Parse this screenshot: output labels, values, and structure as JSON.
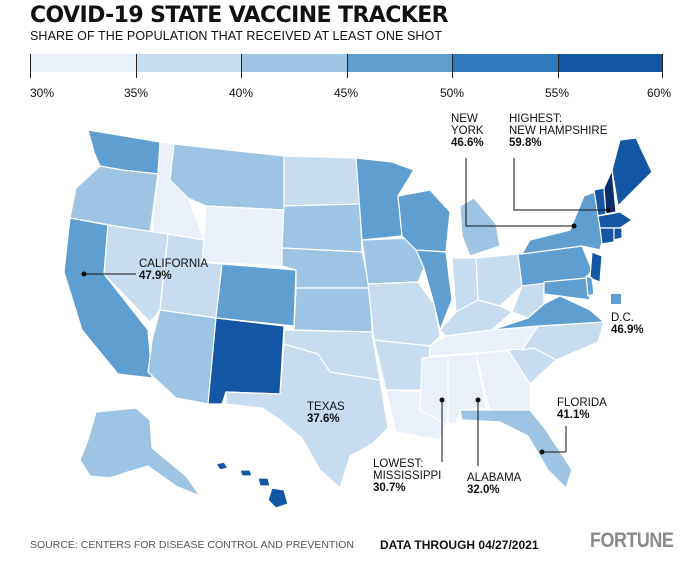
{
  "header": {
    "title": "COVID-19 STATE VACCINE TRACKER",
    "subtitle": "SHARE OF THE POPULATION THAT RECEIVED AT LEAST ONE SHOT"
  },
  "legend": {
    "ticks": [
      "30%",
      "35%",
      "40%",
      "45%",
      "50%",
      "55%",
      "60%"
    ],
    "colors": [
      "#e9f0fa",
      "#c8dcef",
      "#9dc4e3",
      "#5e9ed0",
      "#2e79bd",
      "#1356a3",
      "#0b2e6a"
    ]
  },
  "callouts": {
    "new_york": {
      "name_line1": "NEW",
      "name_line2": "YORK",
      "value": "46.6%"
    },
    "new_hampshire": {
      "name_line1": "HIGHEST:",
      "name_line2": "NEW HAMPSHIRE",
      "value": "59.8%"
    },
    "california": {
      "name": "CALIFORNIA",
      "value": "47.9%"
    },
    "dc": {
      "name": "D.C.",
      "value": "46.9%"
    },
    "texas": {
      "name": "TEXAS",
      "value": "37.6%"
    },
    "florida": {
      "name": "FLORIDA",
      "value": "41.1%"
    },
    "mississippi": {
      "name_line1": "LOWEST:",
      "name_line2": "MISSISSIPPI",
      "value": "30.7%"
    },
    "alabama": {
      "name": "ALABAMA",
      "value": "32.0%"
    }
  },
  "footer": {
    "source": "SOURCE: CENTERS FOR DISEASE CONTROL AND PREVENTION",
    "data_through": "DATA THROUGH 04/27/2021",
    "brand": "FORTUNE"
  }
}
